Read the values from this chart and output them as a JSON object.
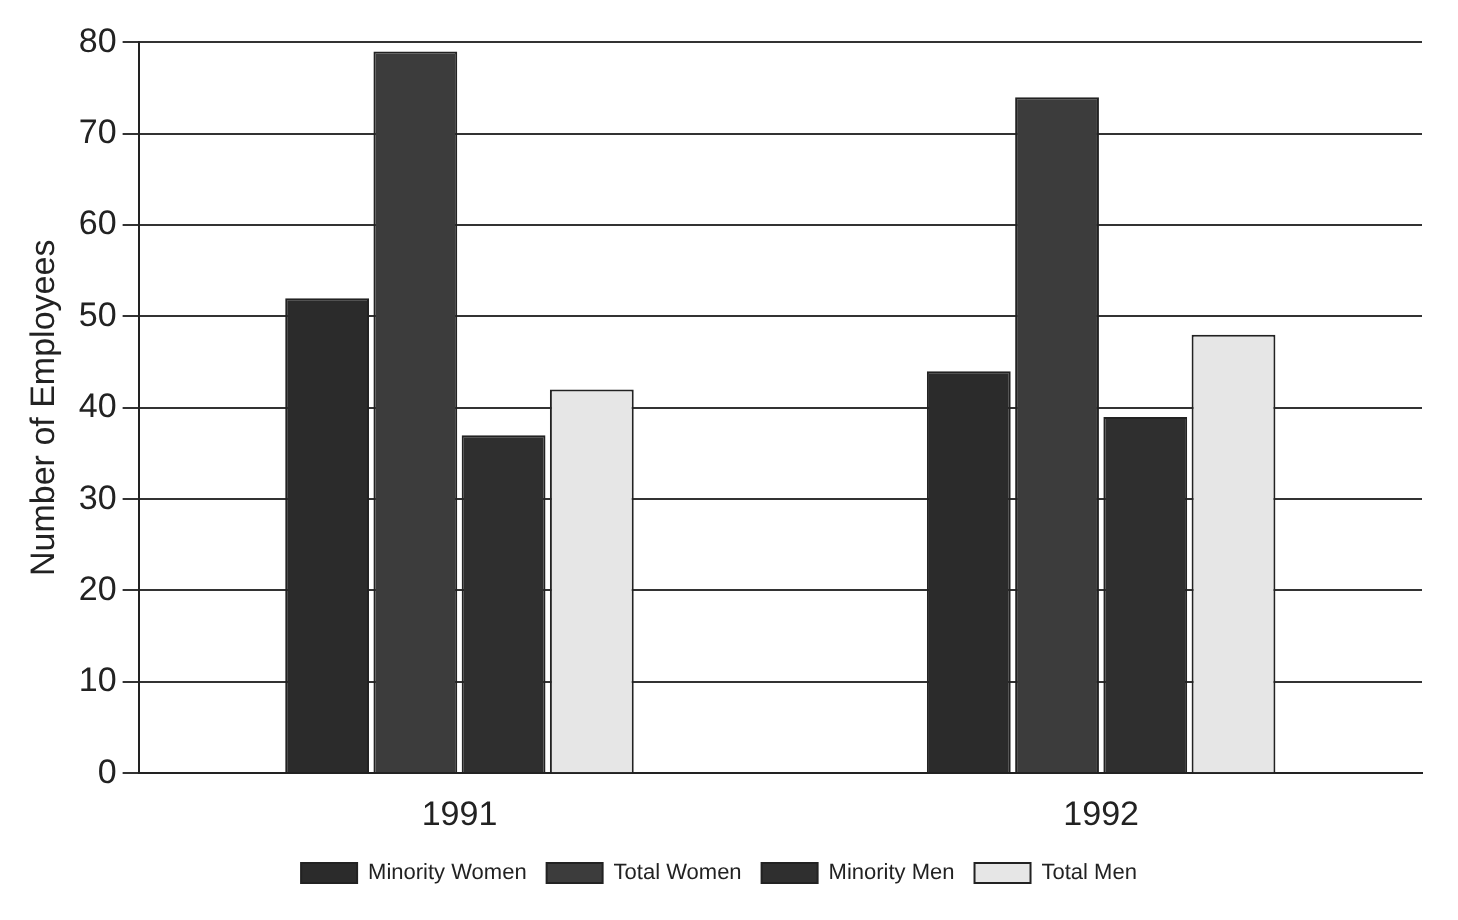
{
  "chart_data": {
    "type": "bar",
    "ylabel": "Number of Employees",
    "categories": [
      "1991",
      "1992"
    ],
    "series": [
      {
        "name": "Minority Women",
        "color": "#2b2b2b",
        "values": [
          52,
          44
        ]
      },
      {
        "name": "Total Women",
        "color": "#3c3c3c",
        "values": [
          79,
          74
        ]
      },
      {
        "name": "Minority Men",
        "color": "#2f2f2f",
        "values": [
          37,
          39
        ]
      },
      {
        "name": "Total Men",
        "color": "#e6e6e6",
        "values": [
          42,
          48
        ]
      }
    ],
    "ylim": [
      0,
      80
    ],
    "yticks": [
      0,
      10,
      20,
      30,
      40,
      50,
      60,
      70,
      80
    ],
    "grid": "y",
    "legend": "bottom"
  }
}
